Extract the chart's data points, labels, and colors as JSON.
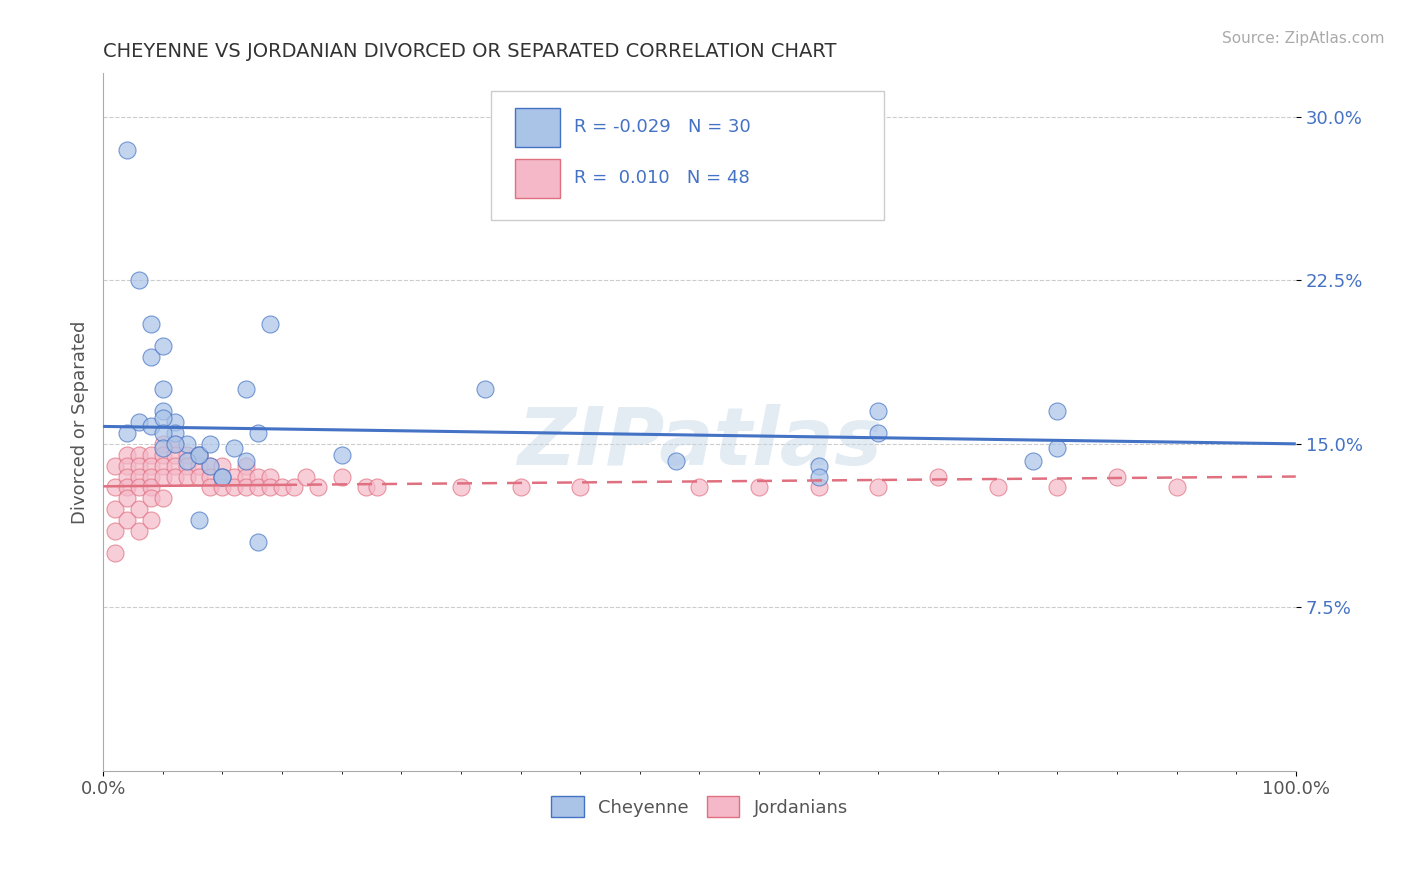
{
  "title": "CHEYENNE VS JORDANIAN DIVORCED OR SEPARATED CORRELATION CHART",
  "source_text": "Source: ZipAtlas.com",
  "ylabel": "Divorced or Separated",
  "R1": "-0.029",
  "N1": "30",
  "R2": "0.010",
  "N2": "48",
  "legend_label1": "Cheyenne",
  "legend_label2": "Jordanians",
  "cheyenne_color": "#aac4e8",
  "jordanian_color": "#f4b8c8",
  "trend1_color": "#4472c4",
  "trend2_color": "#e07080",
  "background_color": "#ffffff",
  "grid_color": "#cccccc",
  "watermark": "ZIPatlas",
  "xlim": [
    0,
    100
  ],
  "ylim": [
    0,
    32
  ],
  "ytick_values": [
    7.5,
    15.0,
    22.5,
    30.0
  ],
  "cheyenne_x": [
    2,
    3,
    4,
    4,
    5,
    5,
    5,
    6,
    6,
    7,
    8,
    8,
    9,
    10,
    12,
    13,
    14,
    20,
    32,
    48,
    60,
    65,
    80
  ],
  "cheyenne_y": [
    28.5,
    22.5,
    20.5,
    19.0,
    17.5,
    16.5,
    19.5,
    16.0,
    15.5,
    15.0,
    14.5,
    11.5,
    14.0,
    13.5,
    17.5,
    10.5,
    20.5,
    14.5,
    17.5,
    14.2,
    14.0,
    16.5,
    16.5
  ],
  "cheyenne_x2": [
    2,
    3,
    4,
    5,
    5,
    5,
    6,
    7,
    8,
    9,
    10,
    11,
    12,
    13,
    60,
    65,
    78,
    80
  ],
  "cheyenne_y2": [
    15.5,
    16.0,
    15.8,
    16.2,
    15.5,
    14.8,
    15.0,
    14.2,
    14.5,
    15.0,
    13.5,
    14.8,
    14.2,
    15.5,
    13.5,
    15.5,
    14.2,
    14.8
  ],
  "jordanian_x": [
    1,
    1,
    1,
    1,
    1,
    2,
    2,
    2,
    2,
    2,
    2,
    3,
    3,
    3,
    3,
    3,
    3,
    4,
    4,
    4,
    4,
    4,
    4,
    5,
    5,
    5,
    5,
    5,
    6,
    6,
    6,
    6,
    7,
    7,
    7,
    8,
    8,
    8,
    9,
    9,
    9,
    10,
    10,
    10,
    11,
    11,
    12,
    12,
    12,
    13,
    13,
    14,
    14,
    15,
    16,
    17,
    18,
    20,
    22,
    23,
    30,
    35,
    40,
    50,
    55,
    60,
    65,
    70,
    75,
    80,
    85,
    90
  ],
  "jordanian_y": [
    14.0,
    13.0,
    12.0,
    11.0,
    10.0,
    14.5,
    14.0,
    13.5,
    13.0,
    12.5,
    11.5,
    14.5,
    14.0,
    13.5,
    13.0,
    12.0,
    11.0,
    14.5,
    14.0,
    13.5,
    13.0,
    12.5,
    11.5,
    15.0,
    14.5,
    14.0,
    13.5,
    12.5,
    15.0,
    14.5,
    14.0,
    13.5,
    14.5,
    14.0,
    13.5,
    14.5,
    14.0,
    13.5,
    14.0,
    13.5,
    13.0,
    14.0,
    13.5,
    13.0,
    13.5,
    13.0,
    14.0,
    13.5,
    13.0,
    13.5,
    13.0,
    13.5,
    13.0,
    13.0,
    13.0,
    13.5,
    13.0,
    13.5,
    13.0,
    13.0,
    13.0,
    13.0,
    13.0,
    13.0,
    13.0,
    13.0,
    13.0,
    13.5,
    13.0,
    13.0,
    13.5,
    13.0
  ]
}
